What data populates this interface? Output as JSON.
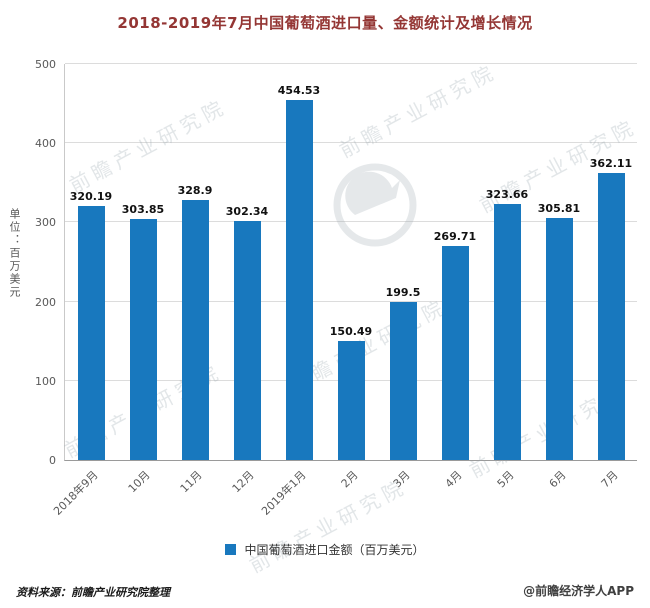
{
  "title": "2018-2019年7月中国葡萄酒进口量、金额统计及增长情况",
  "colors": {
    "bar": "#1878BE",
    "title": "#943634"
  },
  "chart_data": {
    "type": "bar",
    "title": "2018-2019年7月中国葡萄酒进口量、金额统计及增长情况",
    "categories": [
      "2018年9月",
      "10月",
      "11月",
      "12月",
      "2019年1月",
      "2月",
      "3月",
      "4月",
      "5月",
      "6月",
      "7月"
    ],
    "values": [
      320.19,
      303.85,
      328.9,
      302.34,
      454.53,
      150.49,
      199.5,
      269.71,
      323.66,
      305.81,
      362.11
    ],
    "xlabel": "",
    "ylabel": "单位：百万美元",
    "ylim": [
      0,
      500
    ],
    "yticks": [
      0,
      100,
      200,
      300,
      400,
      500
    ],
    "grid": true,
    "bar_color": "#1878BE",
    "legend": [
      "中国葡萄酒进口金额（百万美元）"
    ],
    "legend_position": "bottom"
  },
  "legend": {
    "label": "中国葡萄酒进口金额（百万美元）"
  },
  "footer": {
    "source": "资料来源：前瞻产业研究院整理",
    "credit": "@前瞻经济学人APP"
  },
  "watermark": {
    "text": "前瞻产业研究院"
  }
}
